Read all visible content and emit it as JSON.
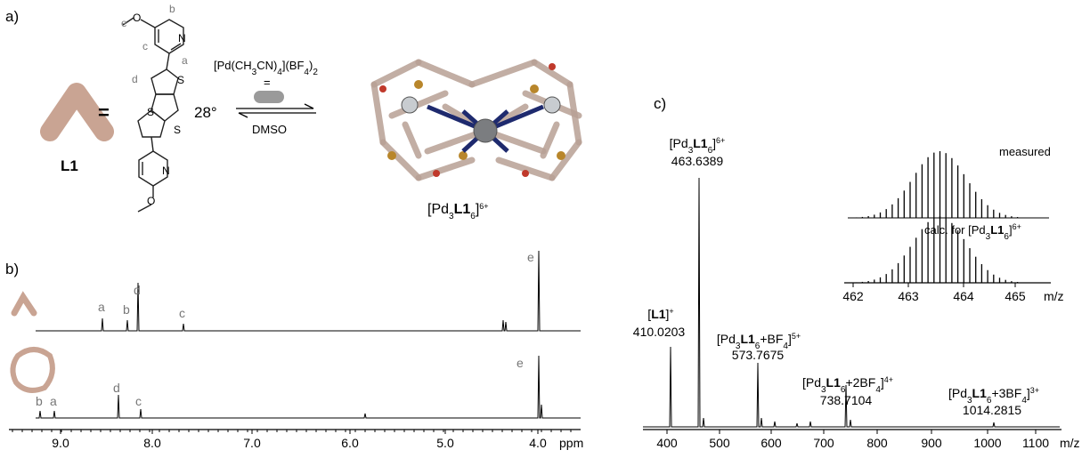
{
  "panel_a": {
    "label": "a)",
    "ligand_label": "L1",
    "equals": "=",
    "angle": "28°",
    "site_labels": [
      "e",
      "b",
      "c",
      "a",
      "d"
    ],
    "atoms": [
      "O",
      "N",
      "S",
      "S",
      "S",
      "N",
      "O"
    ],
    "reagent": [
      "[Pd(CH",
      "3",
      "CN)",
      "4",
      "](BF",
      "4",
      ")",
      "2"
    ],
    "reagent_equals": "=",
    "solvent": "DMSO",
    "cage_label": [
      "[Pd",
      "3",
      "L1",
      "6",
      "]",
      "6+"
    ]
  },
  "panel_b": {
    "label": "b)",
    "top_peaks": [
      "a",
      "b",
      "d",
      "c",
      "e"
    ],
    "bottom_peaks": [
      "b",
      "a",
      "d",
      "c",
      "e"
    ],
    "axis_ticks": [
      "9.0",
      "8.0",
      "7.0",
      "6.0",
      "5.0",
      "4.0"
    ],
    "axis_unit": "ppm"
  },
  "panel_c": {
    "label": "c)",
    "peaks": [
      {
        "ion": [
          "[Pd",
          "3",
          "L1",
          "6",
          "]",
          "6+"
        ],
        "mz": "463.6389"
      },
      {
        "ion": [
          "[",
          "L1",
          "]",
          "+"
        ],
        "mz": "410.0203"
      },
      {
        "ion": [
          "[Pd",
          "3",
          "L1",
          "6",
          "+BF",
          "4",
          "]",
          "5+"
        ],
        "mz": "573.7675"
      },
      {
        "ion": [
          "[Pd",
          "3",
          "L1",
          "6",
          "+2BF",
          "4",
          "]",
          "4+"
        ],
        "mz": "738.7104"
      },
      {
        "ion": [
          "[Pd",
          "3",
          "L1",
          "6",
          "+3BF",
          "4",
          "]",
          "3+"
        ],
        "mz": "1014.2815"
      }
    ],
    "axis_ticks": [
      "400",
      "500",
      "600",
      "700",
      "800",
      "900",
      "1000",
      "1100"
    ],
    "axis_unit": "m/z",
    "inset": {
      "measured": "measured",
      "calc": [
        "calc. for [Pd",
        "3",
        "L1",
        "6",
        "]",
        "6+"
      ],
      "axis_ticks": [
        "462",
        "463",
        "464",
        "465"
      ],
      "axis_unit": "m/z"
    }
  }
}
